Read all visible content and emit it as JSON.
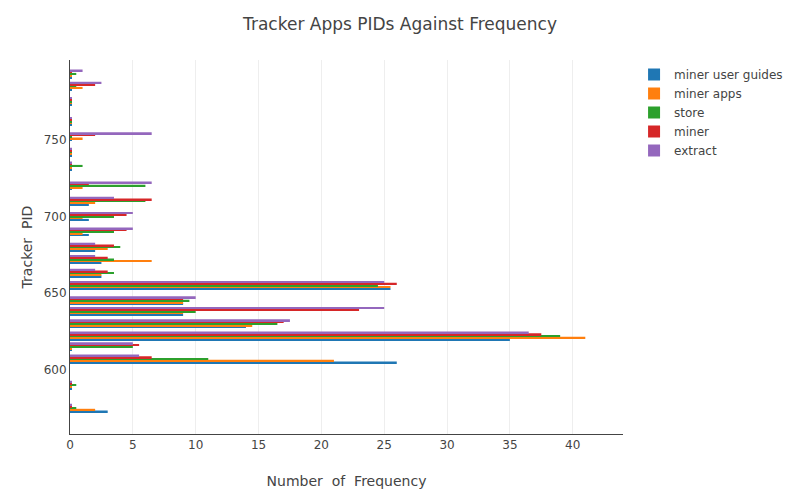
{
  "chart_data": {
    "type": "bar",
    "orientation": "horizontal",
    "title": "Tracker Apps PIDs Against Frequency",
    "xlabel": "Number  of  Frequency",
    "ylabel": "Tracker  PID",
    "categories": [
      575,
      590,
      607,
      615,
      622,
      630,
      638,
      645,
      655,
      663,
      672,
      680,
      690,
      700,
      710,
      720,
      733,
      742,
      752,
      762,
      775,
      785,
      793
    ],
    "series": [
      {
        "name": "miner user guides",
        "color": "#1f77b4",
        "values": [
          3.0,
          0.1,
          26.0,
          0.1,
          35.0,
          14.0,
          9.0,
          9.0,
          25.5,
          2.5,
          2.5,
          2.0,
          1.5,
          1.5,
          1.5,
          0.1,
          0.1,
          0.1,
          0.1,
          0.1,
          0.1,
          0.1,
          0.1
        ]
      },
      {
        "name": "miner apps",
        "color": "#ff7f0e",
        "values": [
          2.0,
          0.1,
          21.0,
          0.1,
          41.0,
          14.5,
          9.0,
          9.0,
          25.5,
          2.5,
          6.5,
          3.0,
          1.0,
          1.0,
          2.0,
          1.0,
          0.1,
          0.1,
          1.0,
          0.1,
          0.1,
          1.0,
          0.1
        ]
      },
      {
        "name": "store",
        "color": "#2ca02c",
        "values": [
          0.5,
          0.5,
          11.0,
          5.0,
          39.0,
          16.5,
          10.0,
          9.5,
          24.5,
          3.5,
          3.5,
          4.0,
          3.5,
          3.5,
          6.0,
          6.0,
          1.0,
          0.1,
          0.1,
          0.1,
          0.1,
          0.5,
          0.5
        ]
      },
      {
        "name": "miner",
        "color": "#d62728",
        "values": [
          0.1,
          0.1,
          6.5,
          5.5,
          37.5,
          17.0,
          23.0,
          9.0,
          26.0,
          3.0,
          3.0,
          3.5,
          4.5,
          4.5,
          6.5,
          1.5,
          0.1,
          0.1,
          2.0,
          0.1,
          0.1,
          2.0,
          0.1
        ]
      },
      {
        "name": "extract",
        "color": "#9467bd",
        "values": [
          0.1,
          0.1,
          5.5,
          5.0,
          36.5,
          17.5,
          25.0,
          10.0,
          25.0,
          2.0,
          2.0,
          2.0,
          5.0,
          5.0,
          3.5,
          6.5,
          0.1,
          0.1,
          6.5,
          0.1,
          0.1,
          2.5,
          1.0
        ]
      }
    ],
    "xlim": [
      0,
      44
    ],
    "xticks": [
      0,
      5,
      10,
      15,
      20,
      25,
      30,
      35,
      40
    ],
    "ylim": [
      558,
      802
    ],
    "yticks": [
      600,
      650,
      700,
      750
    ],
    "grid": true,
    "legend": "upper right"
  }
}
